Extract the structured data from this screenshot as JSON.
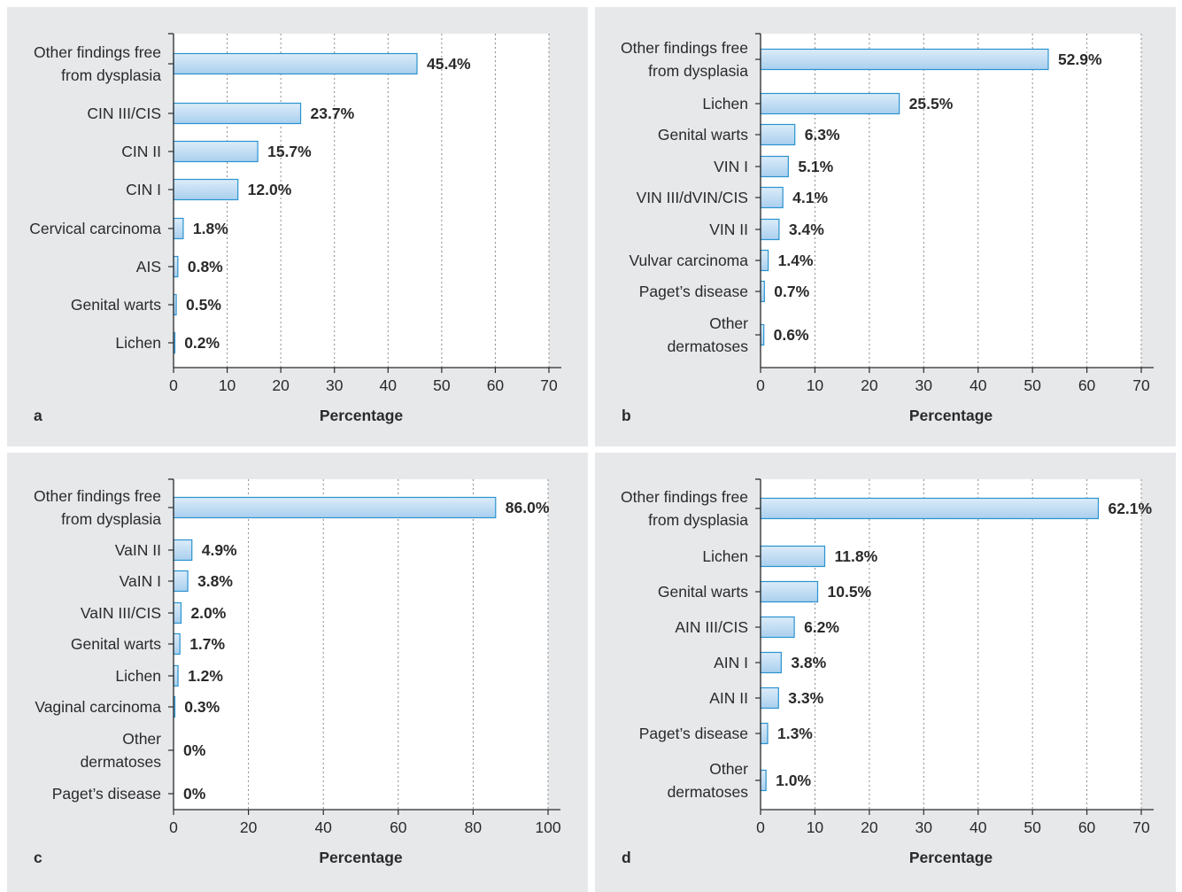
{
  "colors": {
    "panel_bg": "#e6e8ea",
    "plot_bg": "#ffffff",
    "bar_fill_light": "#dcecf9",
    "bar_fill_dark": "#a9cfee",
    "bar_stroke": "#2a93d0",
    "grid": "#8a8a8a",
    "axis": "#2a2a2a"
  },
  "chart_data": [
    {
      "panel_label": "a",
      "type": "bar",
      "orientation": "horizontal",
      "xlabel": "Percentage",
      "xlim": [
        0,
        70
      ],
      "xticks": [
        0,
        10,
        20,
        30,
        40,
        50,
        60,
        70
      ],
      "grid": "vertical dotted",
      "categories": [
        [
          "Other findings free",
          "from dysplasia"
        ],
        [
          "CIN III/CIS"
        ],
        [
          "CIN II"
        ],
        [
          "CIN I"
        ],
        [
          "Cervical carcinoma"
        ],
        [
          "AIS"
        ],
        [
          "Genital warts"
        ],
        [
          "Lichen"
        ]
      ],
      "values": [
        45.4,
        23.7,
        15.7,
        12.0,
        1.8,
        0.8,
        0.5,
        0.2
      ],
      "value_labels": [
        "45.4%",
        "23.7%",
        "15.7%",
        "12.0%",
        "1.8%",
        "0.8%",
        "0.5%",
        "0.2%"
      ]
    },
    {
      "panel_label": "b",
      "type": "bar",
      "orientation": "horizontal",
      "xlabel": "Percentage",
      "xlim": [
        0,
        70
      ],
      "xticks": [
        0,
        10,
        20,
        30,
        40,
        50,
        60,
        70
      ],
      "grid": "vertical dotted",
      "categories": [
        [
          "Other findings free",
          "from dysplasia"
        ],
        [
          "Lichen"
        ],
        [
          "Genital warts"
        ],
        [
          "VIN I"
        ],
        [
          "VIN III/dVIN/CIS"
        ],
        [
          "VIN II"
        ],
        [
          "Vulvar carcinoma"
        ],
        [
          "Paget’s disease"
        ],
        [
          "Other",
          "dermatoses"
        ]
      ],
      "values": [
        52.9,
        25.5,
        6.3,
        5.1,
        4.1,
        3.4,
        1.4,
        0.7,
        0.6
      ],
      "value_labels": [
        "52.9%",
        "25.5%",
        "6.3%",
        "5.1%",
        "4.1%",
        "3.4%",
        "1.4%",
        "0.7%",
        "0.6%"
      ]
    },
    {
      "panel_label": "c",
      "type": "bar",
      "orientation": "horizontal",
      "xlabel": "Percentage",
      "xlim": [
        0,
        100
      ],
      "xticks": [
        0,
        20,
        40,
        60,
        80,
        100
      ],
      "grid": "vertical dotted",
      "categories": [
        [
          "Other findings free",
          "from dysplasia"
        ],
        [
          "VaIN II"
        ],
        [
          "VaIN I"
        ],
        [
          "VaIN III/CIS"
        ],
        [
          "Genital warts"
        ],
        [
          "Lichen"
        ],
        [
          "Vaginal carcinoma"
        ],
        [
          "Other",
          "dermatoses"
        ],
        [
          "Paget’s disease"
        ]
      ],
      "values": [
        86.0,
        4.9,
        3.8,
        2.0,
        1.7,
        1.2,
        0.3,
        0,
        0
      ],
      "value_labels": [
        "86.0%",
        "4.9%",
        "3.8%",
        "2.0%",
        "1.7%",
        "1.2%",
        "0.3%",
        "0%",
        "0%"
      ]
    },
    {
      "panel_label": "d",
      "type": "bar",
      "orientation": "horizontal",
      "xlabel": "Percentage",
      "xlim": [
        0,
        70
      ],
      "xticks": [
        0,
        10,
        20,
        30,
        40,
        50,
        60,
        70
      ],
      "grid": "vertical dotted",
      "categories": [
        [
          "Other findings free",
          "from dysplasia"
        ],
        [
          "Lichen"
        ],
        [
          "Genital warts"
        ],
        [
          "AIN III/CIS"
        ],
        [
          "AIN I"
        ],
        [
          "AIN II"
        ],
        [
          "Paget’s disease"
        ],
        [
          "Other",
          "dermatoses"
        ]
      ],
      "values": [
        62.1,
        11.8,
        10.5,
        6.2,
        3.8,
        3.3,
        1.3,
        1.0
      ],
      "value_labels": [
        "62.1%",
        "11.8%",
        "10.5%",
        "6.2%",
        "3.8%",
        "3.3%",
        "1.3%",
        "1.0%"
      ]
    }
  ]
}
